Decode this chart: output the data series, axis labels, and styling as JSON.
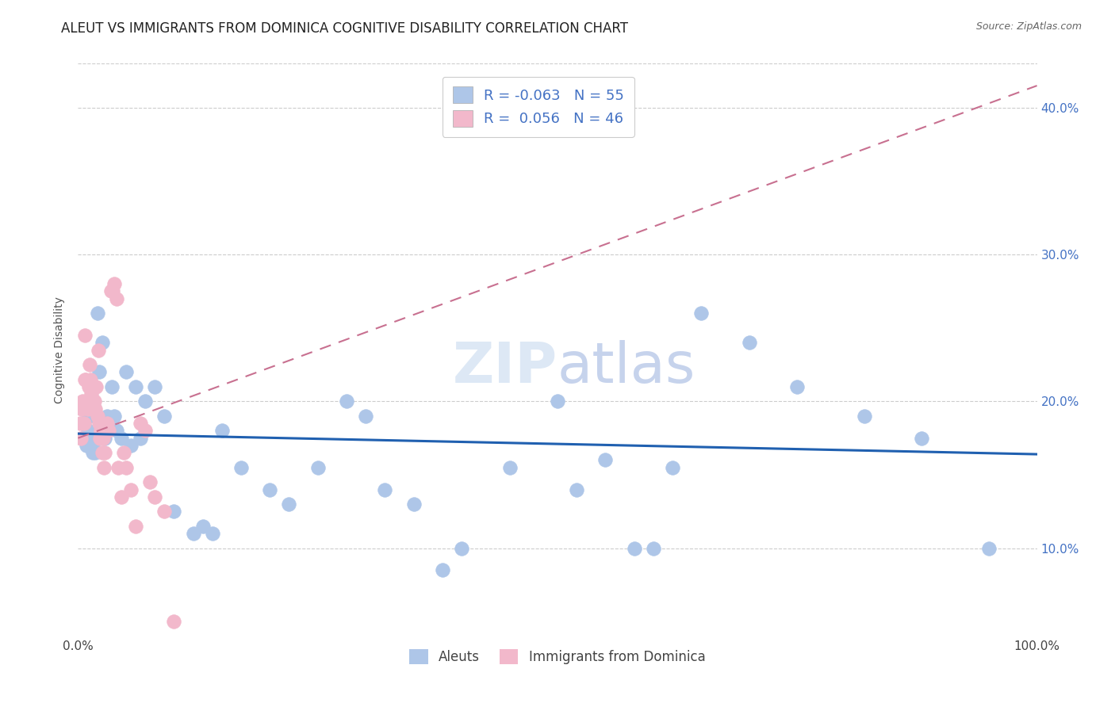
{
  "title": "ALEUT VS IMMIGRANTS FROM DOMINICA COGNITIVE DISABILITY CORRELATION CHART",
  "source": "Source: ZipAtlas.com",
  "ylabel": "Cognitive Disability",
  "bottom_legend": [
    "Aleuts",
    "Immigrants from Dominica"
  ],
  "blue_color": "#aec6e8",
  "pink_color": "#f2b8cb",
  "blue_line_color": "#2060b0",
  "pink_line_color": "#c87090",
  "watermark_color": "#dde8f5",
  "background_color": "#ffffff",
  "grid_color": "#cccccc",
  "tick_fontsize": 11,
  "axis_label_fontsize": 10,
  "title_fontsize": 12,
  "xlim": [
    0.0,
    1.0
  ],
  "ylim": [
    0.04,
    0.43
  ],
  "aleuts_x": [
    0.005,
    0.007,
    0.009,
    0.01,
    0.012,
    0.013,
    0.015,
    0.015,
    0.017,
    0.018,
    0.02,
    0.022,
    0.025,
    0.028,
    0.03,
    0.033,
    0.035,
    0.038,
    0.04,
    0.045,
    0.05,
    0.055,
    0.06,
    0.065,
    0.07,
    0.08,
    0.09,
    0.1,
    0.12,
    0.13,
    0.14,
    0.15,
    0.17,
    0.2,
    0.22,
    0.25,
    0.28,
    0.3,
    0.32,
    0.35,
    0.38,
    0.4,
    0.45,
    0.5,
    0.52,
    0.55,
    0.58,
    0.6,
    0.62,
    0.65,
    0.7,
    0.75,
    0.82,
    0.88,
    0.95
  ],
  "aleuts_y": [
    0.185,
    0.175,
    0.17,
    0.18,
    0.19,
    0.175,
    0.17,
    0.165,
    0.19,
    0.165,
    0.26,
    0.22,
    0.24,
    0.175,
    0.19,
    0.185,
    0.21,
    0.19,
    0.18,
    0.175,
    0.22,
    0.17,
    0.21,
    0.175,
    0.2,
    0.21,
    0.19,
    0.125,
    0.11,
    0.115,
    0.11,
    0.18,
    0.155,
    0.14,
    0.13,
    0.155,
    0.2,
    0.19,
    0.14,
    0.13,
    0.085,
    0.1,
    0.155,
    0.2,
    0.14,
    0.16,
    0.1,
    0.1,
    0.155,
    0.26,
    0.24,
    0.21,
    0.19,
    0.175,
    0.1
  ],
  "dominica_x": [
    0.002,
    0.003,
    0.004,
    0.005,
    0.006,
    0.007,
    0.007,
    0.008,
    0.009,
    0.01,
    0.011,
    0.012,
    0.013,
    0.014,
    0.015,
    0.016,
    0.017,
    0.018,
    0.019,
    0.02,
    0.021,
    0.022,
    0.023,
    0.024,
    0.025,
    0.026,
    0.027,
    0.028,
    0.03,
    0.032,
    0.034,
    0.036,
    0.038,
    0.04,
    0.042,
    0.045,
    0.048,
    0.05,
    0.055,
    0.06,
    0.065,
    0.07,
    0.075,
    0.08,
    0.09,
    0.1
  ],
  "dominica_y": [
    0.185,
    0.175,
    0.195,
    0.2,
    0.185,
    0.215,
    0.245,
    0.215,
    0.2,
    0.195,
    0.21,
    0.225,
    0.215,
    0.205,
    0.195,
    0.21,
    0.2,
    0.195,
    0.21,
    0.19,
    0.235,
    0.185,
    0.175,
    0.18,
    0.165,
    0.175,
    0.155,
    0.165,
    0.185,
    0.18,
    0.275,
    0.275,
    0.28,
    0.27,
    0.155,
    0.135,
    0.165,
    0.155,
    0.14,
    0.115,
    0.185,
    0.18,
    0.145,
    0.135,
    0.125,
    0.05
  ],
  "blue_R": -0.063,
  "blue_N": 55,
  "pink_R": 0.056,
  "pink_N": 46,
  "blue_intercept": 0.178,
  "blue_slope": -0.014,
  "pink_intercept": 0.175,
  "pink_slope": 0.24
}
